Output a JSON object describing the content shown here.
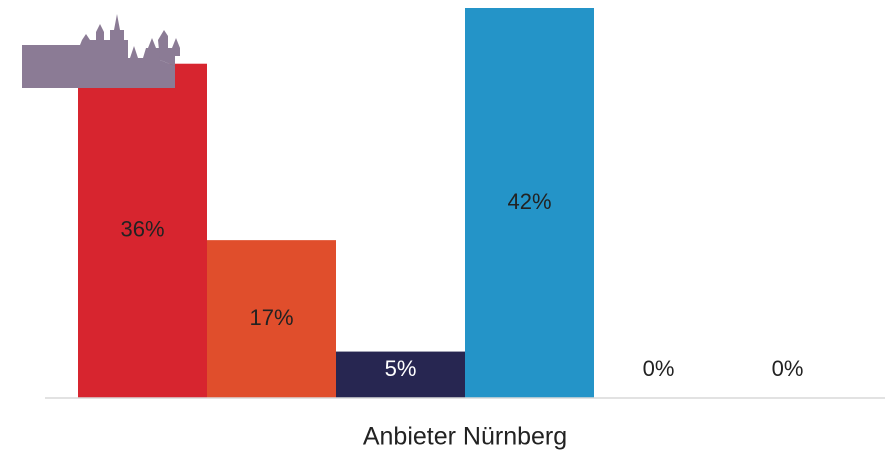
{
  "chart_data": {
    "type": "bar",
    "categories": [
      "Anbieter Nürnberg"
    ],
    "series": [
      {
        "color": "#d7252f",
        "values": [
          36
        ],
        "value_labels": [
          "36%"
        ]
      },
      {
        "color": "#e04e2c",
        "values": [
          17
        ],
        "value_labels": [
          "17%"
        ]
      },
      {
        "color": "#272651",
        "values": [
          5
        ],
        "value_labels": [
          "5%"
        ]
      },
      {
        "color": "#2494c8",
        "values": [
          42
        ],
        "value_labels": [
          "42%"
        ]
      },
      {
        "color": "#9b59b6",
        "values": [
          0
        ],
        "value_labels": [
          "0%"
        ]
      },
      {
        "color": "#7f8c8d",
        "values": [
          0
        ],
        "value_labels": [
          "0%"
        ]
      }
    ],
    "ylim": [
      0,
      42
    ]
  }
}
